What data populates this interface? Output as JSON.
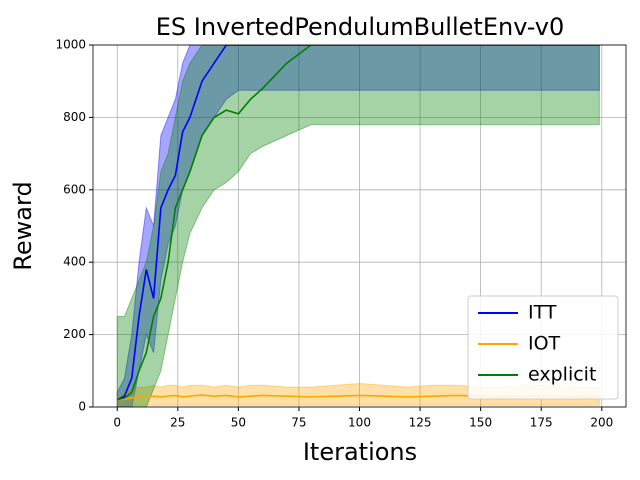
{
  "chart_data": {
    "type": "line",
    "title": "ES InvertedPendulumBulletEnv-v0",
    "x_label": "Iterations",
    "y_label": "Reward",
    "x": [
      0,
      3,
      6,
      9,
      12,
      15,
      18,
      21,
      24,
      27,
      30,
      35,
      40,
      45,
      50,
      55,
      60,
      70,
      80,
      90,
      100,
      110,
      120,
      130,
      140,
      150,
      160,
      170,
      180,
      190,
      199
    ],
    "series": [
      {
        "name": "ITT",
        "color": "#0000ff",
        "values": [
          20,
          30,
          80,
          250,
          380,
          300,
          550,
          600,
          640,
          760,
          800,
          900,
          950,
          1000,
          1000,
          1000,
          1000,
          1000,
          1000,
          1000,
          1000,
          1000,
          1000,
          1000,
          1000,
          1000,
          1000,
          1000,
          1000,
          1000,
          1000
        ],
        "lower": [
          0,
          0,
          0,
          100,
          200,
          150,
          350,
          450,
          500,
          600,
          650,
          750,
          800,
          850,
          875,
          875,
          875,
          875,
          875,
          875,
          875,
          875,
          875,
          875,
          875,
          875,
          875,
          875,
          875,
          875,
          875
        ],
        "upper": [
          40,
          80,
          200,
          400,
          550,
          500,
          750,
          800,
          850,
          950,
          1000,
          1000,
          1000,
          1000,
          1000,
          1000,
          1000,
          1000,
          1000,
          1000,
          1000,
          1000,
          1000,
          1000,
          1000,
          1000,
          1000,
          1000,
          1000,
          1000,
          1000
        ]
      },
      {
        "name": "IOT",
        "color": "#ffa500",
        "values": [
          20,
          22,
          25,
          28,
          25,
          30,
          28,
          30,
          32,
          28,
          30,
          33,
          30,
          32,
          28,
          30,
          32,
          30,
          28,
          30,
          32,
          30,
          28,
          30,
          32,
          30,
          28,
          30,
          30,
          28,
          30
        ],
        "lower": [
          5,
          5,
          5,
          5,
          5,
          5,
          5,
          5,
          5,
          5,
          5,
          5,
          5,
          5,
          5,
          5,
          5,
          5,
          5,
          5,
          5,
          5,
          5,
          5,
          5,
          5,
          5,
          5,
          5,
          5,
          5
        ],
        "upper": [
          30,
          40,
          50,
          55,
          55,
          60,
          55,
          60,
          60,
          55,
          60,
          60,
          55,
          60,
          55,
          60,
          60,
          55,
          55,
          60,
          65,
          60,
          55,
          60,
          60,
          55,
          55,
          60,
          60,
          55,
          55
        ]
      },
      {
        "name": "explicit",
        "color": "#008000",
        "values": [
          20,
          25,
          40,
          100,
          150,
          250,
          300,
          400,
          550,
          600,
          650,
          750,
          800,
          820,
          810,
          850,
          880,
          950,
          1000,
          1000,
          1000,
          1000,
          1000,
          1000,
          1000,
          1000,
          1000,
          1000,
          1000,
          1000,
          1000
        ],
        "lower": [
          0,
          0,
          0,
          0,
          0,
          50,
          100,
          200,
          300,
          400,
          480,
          550,
          600,
          620,
          650,
          700,
          720,
          750,
          780,
          780,
          780,
          780,
          780,
          780,
          780,
          780,
          780,
          780,
          780,
          780,
          780
        ],
        "upper": [
          250,
          250,
          300,
          350,
          400,
          500,
          650,
          700,
          800,
          900,
          950,
          1000,
          1000,
          1000,
          1000,
          1000,
          1000,
          1000,
          1000,
          1000,
          1000,
          1000,
          1000,
          1000,
          1000,
          1000,
          1000,
          1000,
          1000,
          1000,
          1000
        ]
      }
    ],
    "xlim": [
      -10,
      210
    ],
    "ylim": [
      0,
      1000
    ],
    "xticks": [
      0,
      25,
      50,
      75,
      100,
      125,
      150,
      175,
      200
    ],
    "yticks": [
      0,
      200,
      400,
      600,
      800,
      1000
    ],
    "grid": true,
    "legend": "lower right"
  }
}
